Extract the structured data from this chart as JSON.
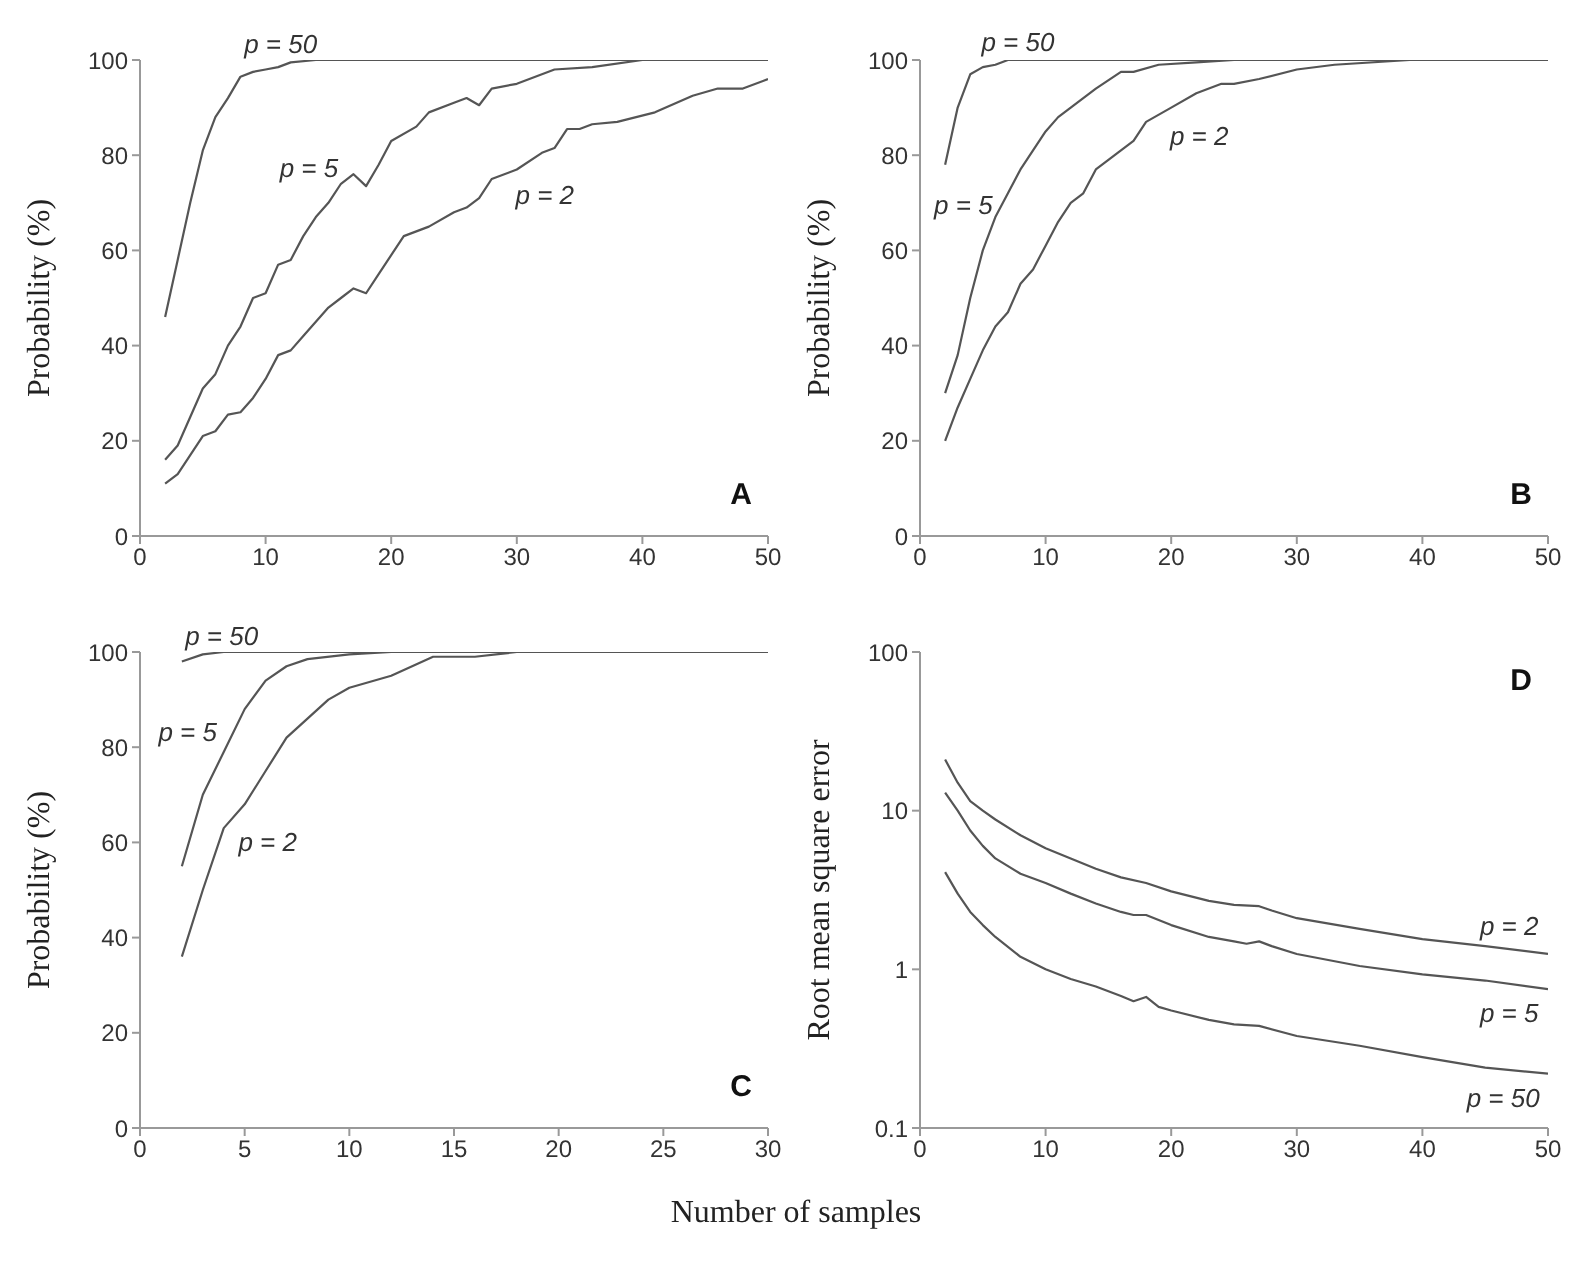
{
  "chart_data": [
    {
      "type": "line",
      "title": "A",
      "ylabel": "Probability (%)",
      "xlim": [
        0,
        50
      ],
      "xticks": [
        0,
        10,
        20,
        30,
        40,
        50
      ],
      "ylim": [
        0,
        100
      ],
      "yticks": [
        0,
        20,
        40,
        60,
        80,
        100
      ],
      "series": [
        {
          "color": "#555555",
          "x": [
            2,
            3,
            4,
            5,
            6,
            7,
            8,
            9,
            10,
            11,
            12,
            14,
            50
          ],
          "values": [
            46,
            58,
            70,
            81,
            88,
            92,
            96.5,
            97.5,
            98,
            98.5,
            99.5,
            100,
            100
          ]
        },
        {
          "color": "#555555",
          "x": [
            2,
            3,
            4,
            5,
            6,
            7,
            8,
            9,
            10,
            11,
            12,
            13,
            14,
            15,
            16,
            17,
            18,
            19,
            20,
            22,
            23,
            25,
            26,
            27,
            28,
            30,
            33,
            36,
            40,
            50
          ],
          "values": [
            16,
            19,
            25,
            31,
            34,
            40,
            44,
            50,
            51,
            57,
            58,
            63,
            67,
            70,
            74,
            76,
            73.5,
            78,
            83,
            86,
            89,
            91,
            92,
            90.5,
            94,
            95,
            98,
            98.5,
            100,
            100
          ]
        },
        {
          "color": "#555555",
          "x": [
            2,
            3,
            4,
            5,
            6,
            7,
            8,
            9,
            10,
            11,
            12,
            13,
            14,
            15,
            16,
            17,
            18,
            19,
            20,
            21,
            22,
            23,
            25,
            26,
            27,
            28,
            30,
            32,
            33,
            34,
            35,
            36,
            38,
            41,
            44,
            46,
            48,
            50
          ],
          "values": [
            11,
            13,
            17,
            21,
            22,
            25.5,
            26,
            29,
            33,
            38,
            39,
            42,
            45,
            48,
            50,
            52,
            51,
            55,
            59,
            63,
            64,
            65,
            68,
            69,
            71,
            75,
            77,
            80.5,
            81.5,
            85.5,
            85.5,
            86.5,
            87,
            89,
            92.5,
            94,
            94,
            96
          ]
        }
      ],
      "annotations": [
        {
          "text": "p = 50",
          "x": 12,
          "y": 99.5
        },
        {
          "text": "p = 5",
          "x": 16,
          "y": 74
        },
        {
          "text": "p = 2",
          "x": 30,
          "y": 77
        }
      ]
    },
    {
      "type": "line",
      "title": "B",
      "ylabel": "Probability (%)",
      "xlim": [
        0,
        50
      ],
      "xticks": [
        0,
        10,
        20,
        30,
        40,
        50
      ],
      "ylim": [
        0,
        100
      ],
      "yticks": [
        0,
        20,
        40,
        60,
        80,
        100
      ],
      "series": [
        {
          "color": "#555555",
          "x": [
            2,
            3,
            4,
            5,
            6,
            7,
            50
          ],
          "values": [
            78,
            90,
            97,
            98.5,
            99,
            100,
            100
          ]
        },
        {
          "color": "#555555",
          "x": [
            2,
            3,
            4,
            5,
            6,
            7,
            8,
            9,
            10,
            11,
            12,
            14,
            16,
            17,
            19,
            22,
            25,
            50
          ],
          "values": [
            30,
            38,
            50,
            60,
            67,
            72,
            77,
            81,
            85,
            88,
            90,
            94,
            97.5,
            97.5,
            99,
            99.5,
            100,
            100
          ]
        },
        {
          "color": "#555555",
          "x": [
            2,
            3,
            4,
            5,
            6,
            7,
            8,
            9,
            10,
            11,
            12,
            13,
            14,
            15,
            16,
            17,
            18,
            20,
            22,
            24,
            25,
            27,
            30,
            33,
            39,
            50
          ],
          "values": [
            20,
            27,
            33,
            39,
            44,
            47,
            53,
            56,
            61,
            66,
            70,
            72,
            77,
            79,
            81,
            83,
            87,
            90,
            93,
            95,
            95,
            96,
            98,
            99,
            100,
            100
          ]
        }
      ],
      "annotations": [
        {
          "text": "p = 50",
          "x": 7,
          "y": 100
        },
        {
          "text": "p = 5",
          "x": 6,
          "y": 67
        },
        {
          "text": "p = 2",
          "x": 20,
          "y": 90
        }
      ]
    },
    {
      "type": "line",
      "title": "C",
      "ylabel": "Probability (%)",
      "xlabel": "Number of samples",
      "xlim": [
        0,
        30
      ],
      "xticks": [
        0,
        5,
        10,
        15,
        20,
        25,
        30
      ],
      "ylim": [
        0,
        100
      ],
      "yticks": [
        0,
        20,
        40,
        60,
        80,
        100
      ],
      "series": [
        {
          "color": "#555555",
          "x": [
            2,
            3,
            4,
            30
          ],
          "values": [
            98,
            99.5,
            100,
            100
          ]
        },
        {
          "color": "#555555",
          "x": [
            2,
            3,
            4,
            5,
            6,
            7,
            8,
            10,
            12,
            30
          ],
          "values": [
            55,
            70,
            79,
            88,
            94,
            97,
            98.5,
            99.5,
            100,
            100
          ]
        },
        {
          "color": "#555555",
          "x": [
            2,
            3,
            4,
            5,
            6,
            7,
            8,
            9,
            10,
            12,
            14,
            16,
            18,
            30
          ],
          "values": [
            36,
            50,
            63,
            68,
            75,
            82,
            86,
            90,
            92.5,
            95,
            99,
            99,
            100,
            100
          ]
        }
      ],
      "annotations": [
        {
          "text": "p = 50",
          "x": 4,
          "y": 100
        },
        {
          "text": "p = 5",
          "x": 4,
          "y": 79
        },
        {
          "text": "p = 2",
          "x": 4,
          "y": 63
        }
      ]
    },
    {
      "type": "line",
      "title": "D",
      "ylabel": "Root mean square error",
      "log": true,
      "xlim": [
        0,
        50
      ],
      "xticks": [
        0,
        10,
        20,
        30,
        40,
        50
      ],
      "ylim": [
        0.1,
        100
      ],
      "yticks": [
        0.1,
        1,
        10,
        100
      ],
      "series": [
        {
          "color": "#555555",
          "x": [
            2,
            3,
            4,
            5,
            6,
            8,
            10,
            12,
            14,
            16,
            18,
            20,
            23,
            25,
            27,
            28,
            30,
            35,
            40,
            45,
            50
          ],
          "values": [
            21,
            15,
            11.5,
            10,
            8.8,
            7,
            5.8,
            5,
            4.3,
            3.8,
            3.5,
            3.1,
            2.7,
            2.55,
            2.5,
            2.35,
            2.1,
            1.8,
            1.55,
            1.4,
            1.25
          ]
        },
        {
          "color": "#555555",
          "x": [
            2,
            3,
            4,
            5,
            6,
            8,
            10,
            12,
            14,
            16,
            17,
            18,
            20,
            23,
            25,
            26,
            27,
            28,
            30,
            35,
            40,
            45,
            50
          ],
          "values": [
            13,
            10,
            7.5,
            6,
            5,
            4,
            3.5,
            3,
            2.6,
            2.3,
            2.2,
            2.2,
            1.9,
            1.6,
            1.5,
            1.45,
            1.5,
            1.4,
            1.25,
            1.05,
            0.93,
            0.85,
            0.75
          ]
        },
        {
          "color": "#555555",
          "x": [
            2,
            3,
            4,
            5,
            6,
            8,
            10,
            12,
            14,
            16,
            17,
            18,
            19,
            20,
            23,
            25,
            27,
            30,
            35,
            40,
            45,
            50
          ],
          "values": [
            4.1,
            3,
            2.3,
            1.9,
            1.6,
            1.2,
            1.0,
            0.87,
            0.78,
            0.68,
            0.63,
            0.67,
            0.58,
            0.55,
            0.48,
            0.45,
            0.44,
            0.38,
            0.33,
            0.28,
            0.24,
            0.22
          ]
        }
      ],
      "annotations": [
        {
          "text": "p = 2",
          "x": 45,
          "y": 1.4
        },
        {
          "text": "p = 5",
          "x": 45,
          "y": 0.85
        },
        {
          "text": "p = 50",
          "x": 45,
          "y": 0.24
        }
      ]
    }
  ]
}
